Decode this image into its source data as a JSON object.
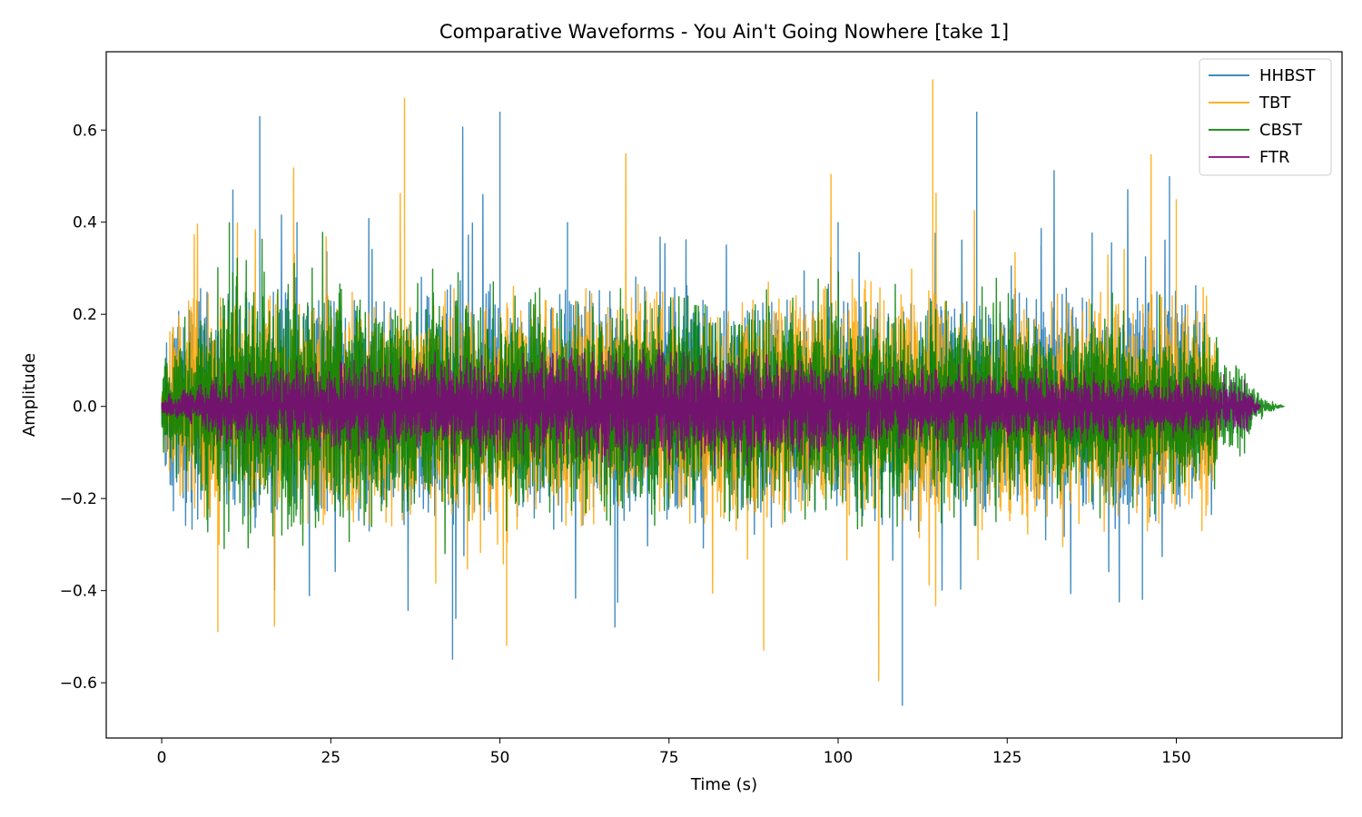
{
  "chart_data": {
    "type": "line",
    "title": "Comparative Waveforms - You Ain't Going Nowhere [take 1]",
    "xlabel": "Time (s)",
    "ylabel": "Amplitude",
    "xlim": [
      -8.2,
      174.5
    ],
    "ylim": [
      -0.72,
      0.77
    ],
    "xticks": [
      0,
      25,
      50,
      75,
      100,
      125,
      150
    ],
    "xtick_labels": [
      "0",
      "25",
      "50",
      "75",
      "100",
      "125",
      "150"
    ],
    "yticks": [
      -0.6,
      -0.4,
      -0.2,
      0.0,
      0.2,
      0.4,
      0.6
    ],
    "ytick_labels": [
      "−0.6",
      "−0.4",
      "−0.2",
      "0.0",
      "0.2",
      "0.4",
      "0.6"
    ],
    "grid": false,
    "legend_position": "top-right",
    "series": [
      {
        "name": "HHBST",
        "color": "#1f77b4",
        "duration": 155.5,
        "envelope_points": [
          [
            0,
            0.1
          ],
          [
            3,
            0.28
          ],
          [
            14.5,
            0.63
          ],
          [
            20,
            0.4
          ],
          [
            43,
            -0.55
          ],
          [
            50,
            0.64
          ],
          [
            60,
            0.4
          ],
          [
            67,
            -0.48
          ],
          [
            100,
            0.4
          ],
          [
            109.5,
            -0.65
          ],
          [
            120.5,
            0.64
          ],
          [
            130,
            0.35
          ],
          [
            145,
            -0.42
          ],
          [
            149,
            0.5
          ],
          [
            155.5,
            0.0
          ]
        ]
      },
      {
        "name": "TBT",
        "color": "#ffa500",
        "duration": 156.5,
        "envelope_points": [
          [
            0,
            0.08
          ],
          [
            8.3,
            -0.49
          ],
          [
            35.9,
            0.67
          ],
          [
            51,
            -0.52
          ],
          [
            89,
            -0.53
          ],
          [
            114,
            0.71
          ],
          [
            150,
            0.45
          ],
          [
            156.5,
            0.0
          ]
        ]
      },
      {
        "name": "CBST",
        "color": "#008000",
        "duration": 166,
        "envelope_points": [
          [
            0,
            0.11
          ],
          [
            10,
            0.4
          ],
          [
            50,
            0.3
          ],
          [
            100,
            0.3
          ],
          [
            150,
            0.25
          ],
          [
            160,
            0.15
          ],
          [
            163,
            0.02
          ],
          [
            166,
            0.0
          ]
        ]
      },
      {
        "name": "FTR",
        "color": "#800080",
        "duration": 162.5,
        "envelope_points": [
          [
            0,
            0.02
          ],
          [
            10,
            0.1
          ],
          [
            78,
            0.15
          ],
          [
            100,
            0.12
          ],
          [
            160,
            0.07
          ],
          [
            162.5,
            0.0
          ]
        ]
      }
    ]
  }
}
